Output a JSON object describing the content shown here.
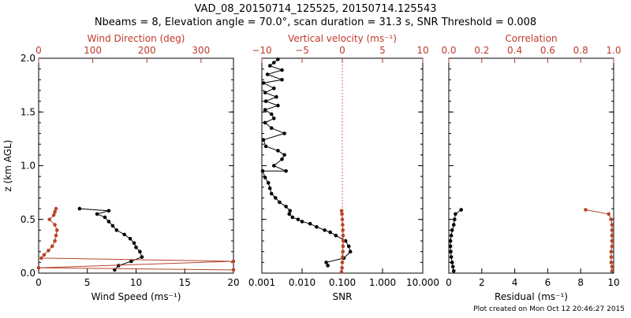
{
  "title_line1": "VAD_08_20150714_125525, 20150714.125543",
  "title_line2": "Nbeams = 8, Elevation angle = 70.0°, scan duration = 31.3 s, SNR Threshold = 0.008",
  "footer": "Plot created on Mon Oct 12 20:46:27 2015",
  "colors": {
    "black": "#000000",
    "red": "#c0392b",
    "dot_red": "#b5452a"
  },
  "chart_data": [
    {
      "type": "line",
      "name": "wind-panel",
      "ylabel": "z (km AGL)",
      "ylim": [
        0,
        2
      ],
      "yticks": [
        0.0,
        0.5,
        1.0,
        1.5,
        2.0
      ],
      "ytick_labels": [
        "0.0",
        "0.5",
        "1.0",
        "1.5",
        "2.0"
      ],
      "bottom_axis": {
        "label": "Wind Speed (ms⁻¹)",
        "lim": [
          0,
          20
        ],
        "ticks": [
          0,
          5,
          10,
          15,
          20
        ],
        "tick_labels": [
          "0",
          "5",
          "10",
          "15",
          "20"
        ]
      },
      "top_axis": {
        "label": "Wind Direction (deg)",
        "lim": [
          0,
          360
        ],
        "ticks": [
          0,
          100,
          200,
          300
        ],
        "tick_labels": [
          "0",
          "100",
          "200",
          "300"
        ]
      },
      "series": [
        {
          "axis": "bottom",
          "color": "black",
          "marker": "dot",
          "points": [
            [
              7.8,
              0.03
            ],
            [
              8.2,
              0.07
            ],
            [
              9.5,
              0.11
            ],
            [
              10.6,
              0.15
            ],
            [
              10.4,
              0.2
            ],
            [
              10.0,
              0.24
            ],
            [
              9.8,
              0.28
            ],
            [
              9.4,
              0.32
            ],
            [
              8.8,
              0.36
            ],
            [
              8.0,
              0.4
            ],
            [
              7.6,
              0.44
            ],
            [
              7.2,
              0.48
            ],
            [
              6.8,
              0.52
            ],
            [
              6.0,
              0.55
            ],
            [
              7.2,
              0.58
            ],
            [
              4.2,
              0.6
            ]
          ]
        },
        {
          "axis": "top",
          "color": "dot_red",
          "marker": "dot",
          "points": [
            [
              360,
              0.03
            ],
            [
              0,
              0.05
            ],
            [
              360,
              0.11
            ],
            [
              5,
              0.14
            ],
            [
              10,
              0.17
            ],
            [
              18,
              0.21
            ],
            [
              25,
              0.25
            ],
            [
              30,
              0.3
            ],
            [
              32,
              0.35
            ],
            [
              34,
              0.4
            ],
            [
              30,
              0.45
            ],
            [
              20,
              0.5
            ],
            [
              28,
              0.54
            ],
            [
              30,
              0.57
            ],
            [
              32,
              0.6
            ]
          ]
        }
      ]
    },
    {
      "type": "line",
      "name": "vertical-velocity-panel",
      "ylim": [
        0,
        2
      ],
      "bottom_axis": {
        "label": "SNR",
        "lim": [
          0.001,
          10
        ],
        "scale": "log",
        "ticks": [
          0.001,
          0.01,
          0.1,
          1,
          10
        ],
        "tick_labels": [
          "0.001",
          "0.010",
          "0.100",
          "1.000",
          "10.000"
        ]
      },
      "top_axis": {
        "label": "Vertical velocity (ms⁻¹)",
        "lim": [
          -10,
          10
        ],
        "ticks": [
          -10,
          -5,
          0,
          5,
          10
        ],
        "tick_labels": [
          "−10",
          "−5",
          "0",
          "5",
          "10"
        ]
      },
      "zero_line": {
        "axis": "top",
        "value": 0,
        "color": "red",
        "style": "dotted"
      },
      "series": [
        {
          "axis": "top",
          "color": "black",
          "marker": "dot",
          "points": [
            [
              -1.8,
              0.07
            ],
            [
              -2.0,
              0.1
            ],
            [
              0.2,
              0.14
            ],
            [
              1.0,
              0.2
            ],
            [
              0.8,
              0.25
            ],
            [
              0.4,
              0.3
            ],
            [
              -0.8,
              0.35
            ],
            [
              -1.5,
              0.38
            ],
            [
              -2.2,
              0.4
            ],
            [
              -3.2,
              0.43
            ],
            [
              -4.0,
              0.46
            ],
            [
              -5.0,
              0.48
            ],
            [
              -5.5,
              0.5
            ],
            [
              -6.2,
              0.52
            ],
            [
              -6.6,
              0.55
            ],
            [
              -6.5,
              0.58
            ],
            [
              -7.0,
              0.62
            ],
            [
              -7.8,
              0.66
            ],
            [
              -8.3,
              0.7
            ],
            [
              -8.8,
              0.74
            ],
            [
              -9.0,
              0.79
            ],
            [
              -9.2,
              0.84
            ],
            [
              -9.6,
              0.89
            ],
            [
              -9.9,
              0.95
            ],
            [
              -7.0,
              0.95
            ],
            [
              -8.5,
              1.0
            ],
            [
              -7.5,
              1.06
            ],
            [
              -7.2,
              1.1
            ],
            [
              -8.0,
              1.14
            ],
            [
              -9.5,
              1.18
            ],
            [
              -9.8,
              1.24
            ],
            [
              -7.2,
              1.3
            ],
            [
              -8.8,
              1.35
            ],
            [
              -9.6,
              1.4
            ],
            [
              -8.5,
              1.44
            ],
            [
              -8.8,
              1.48
            ],
            [
              -9.6,
              1.52
            ],
            [
              -8.0,
              1.56
            ],
            [
              -9.5,
              1.6
            ],
            [
              -8.2,
              1.64
            ],
            [
              -9.6,
              1.68
            ],
            [
              -8.5,
              1.72
            ],
            [
              -9.8,
              1.77
            ],
            [
              -7.5,
              1.8
            ],
            [
              -9.3,
              1.85
            ],
            [
              -7.5,
              1.89
            ],
            [
              -9.0,
              1.93
            ],
            [
              -8.5,
              1.96
            ],
            [
              -8.0,
              1.99
            ]
          ]
        },
        {
          "axis": "bottom",
          "color": "dot_red",
          "marker": "dot",
          "points": [
            [
              0.095,
              0.01
            ],
            [
              0.098,
              0.05
            ],
            [
              0.1,
              0.1
            ],
            [
              0.102,
              0.15
            ],
            [
              0.103,
              0.2
            ],
            [
              0.104,
              0.25
            ],
            [
              0.105,
              0.3
            ],
            [
              0.104,
              0.35
            ],
            [
              0.103,
              0.4
            ],
            [
              0.102,
              0.45
            ],
            [
              0.1,
              0.5
            ],
            [
              0.098,
              0.55
            ],
            [
              0.096,
              0.58
            ]
          ]
        }
      ]
    },
    {
      "type": "line",
      "name": "residual-panel",
      "ylim": [
        0,
        2
      ],
      "bottom_axis": {
        "label": "Residual (ms⁻¹)",
        "lim": [
          0,
          10
        ],
        "ticks": [
          0,
          2,
          4,
          6,
          8,
          10
        ],
        "tick_labels": [
          "0",
          "2",
          "4",
          "6",
          "8",
          "10"
        ]
      },
      "top_axis": {
        "label": "Correlation",
        "lim": [
          0,
          1
        ],
        "ticks": [
          0,
          0.2,
          0.4,
          0.6,
          0.8,
          1.0
        ],
        "tick_labels": [
          "0.0",
          "0.2",
          "0.4",
          "0.6",
          "0.8",
          "1.0"
        ]
      },
      "series": [
        {
          "axis": "bottom",
          "color": "black",
          "marker": "dot",
          "points": [
            [
              0.3,
              0.02
            ],
            [
              0.25,
              0.06
            ],
            [
              0.2,
              0.1
            ],
            [
              0.15,
              0.15
            ],
            [
              0.12,
              0.2
            ],
            [
              0.1,
              0.25
            ],
            [
              0.1,
              0.3
            ],
            [
              0.15,
              0.35
            ],
            [
              0.2,
              0.4
            ],
            [
              0.3,
              0.45
            ],
            [
              0.35,
              0.5
            ],
            [
              0.4,
              0.55
            ],
            [
              0.75,
              0.59
            ]
          ]
        },
        {
          "axis": "top",
          "color": "dot_red",
          "marker": "dot",
          "points": [
            [
              0.99,
              0.02
            ],
            [
              0.99,
              0.06
            ],
            [
              0.985,
              0.1
            ],
            [
              0.985,
              0.15
            ],
            [
              0.985,
              0.2
            ],
            [
              0.99,
              0.25
            ],
            [
              0.99,
              0.3
            ],
            [
              0.99,
              0.35
            ],
            [
              0.99,
              0.4
            ],
            [
              0.99,
              0.45
            ],
            [
              0.985,
              0.5
            ],
            [
              0.97,
              0.55
            ],
            [
              0.83,
              0.59
            ]
          ]
        }
      ]
    }
  ]
}
